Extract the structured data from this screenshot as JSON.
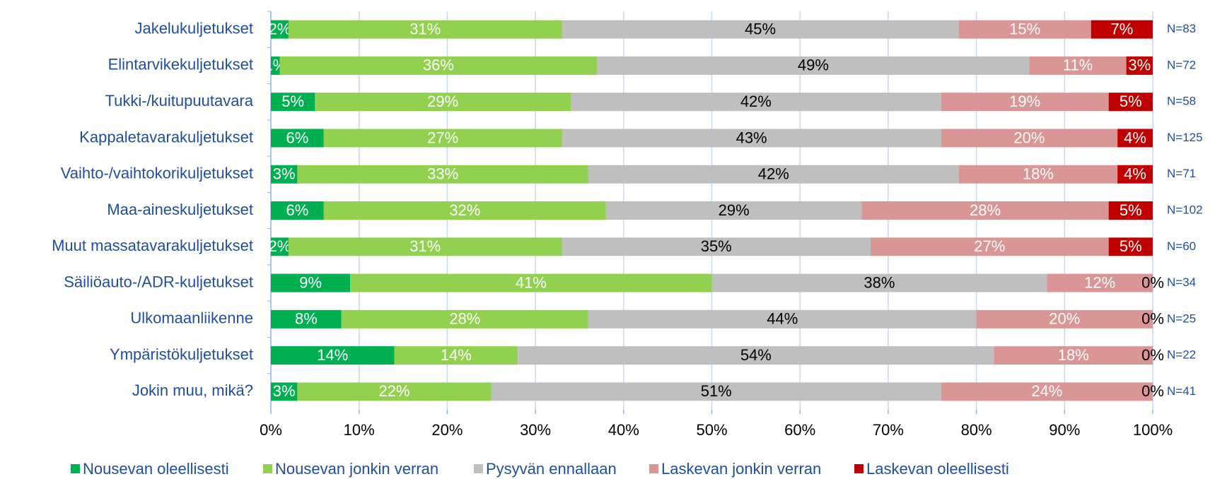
{
  "chart_data": {
    "type": "stacked_barh",
    "categories": [
      "Jakelukuljetukset",
      "Elintarvikekuljetukset",
      "Tukki-/kuitupuutavara",
      "Kappaletavarakuljetukset",
      "Vaihto-/vaihtokorikuljetukset",
      "Maa-aineskuljetukset",
      "Muut massatavarakuljetukset",
      "Säiliöauto-/ADR-kuljetukset",
      "Ulkomaanliikenne",
      "Ympäristökuljetukset",
      "Jokin muu, mikä?"
    ],
    "n_labels": [
      "N=83",
      "N=72",
      "N=58",
      "N=125",
      "N=71",
      "N=102",
      "N=60",
      "N=34",
      "N=25",
      "N=22",
      "N=41"
    ],
    "series": [
      {
        "name": "Nousevan oleellisesti",
        "color": "#00b050",
        "values": [
          2,
          1,
          5,
          6,
          3,
          6,
          2,
          9,
          8,
          14,
          3
        ],
        "value_labels": [
          "2%",
          "1%",
          "5%",
          "6%",
          "3%",
          "6%",
          "2%",
          "9%",
          "8%",
          "14%",
          "3%"
        ]
      },
      {
        "name": "Nousevan jonkin verran",
        "color": "#92d050",
        "values": [
          31,
          36,
          29,
          27,
          33,
          32,
          31,
          41,
          28,
          14,
          22
        ],
        "value_labels": [
          "31%",
          "36%",
          "29%",
          "27%",
          "33%",
          "32%",
          "31%",
          "41%",
          "28%",
          "14%",
          "22%"
        ]
      },
      {
        "name": "Pysyvän ennallaan",
        "color": "#bfbfbf",
        "values": [
          45,
          49,
          42,
          43,
          42,
          29,
          35,
          38,
          44,
          54,
          51
        ],
        "value_labels": [
          "45%",
          "49%",
          "42%",
          "43%",
          "42%",
          "29%",
          "35%",
          "38%",
          "44%",
          "54%",
          "51%"
        ]
      },
      {
        "name": "Laskevan jonkin verran",
        "color": "#da9694",
        "values": [
          15,
          11,
          19,
          20,
          18,
          28,
          27,
          12,
          20,
          18,
          24
        ],
        "value_labels": [
          "15%",
          "11%",
          "19%",
          "20%",
          "18%",
          "28%",
          "27%",
          "12%",
          "20%",
          "18%",
          "24%"
        ]
      },
      {
        "name": "Laskevan oleellisesti",
        "color": "#c00000",
        "values": [
          7,
          3,
          5,
          4,
          4,
          5,
          5,
          0,
          0,
          0,
          0
        ],
        "value_labels": [
          "7%",
          "3%",
          "5%",
          "4%",
          "4%",
          "5%",
          "5%",
          "0%",
          "0%",
          "0%",
          "0%"
        ]
      }
    ],
    "xlim": [
      0,
      100
    ],
    "xticks": [
      {
        "value": 0,
        "label": "0%"
      },
      {
        "value": 10,
        "label": "10%"
      },
      {
        "value": 20,
        "label": "20%"
      },
      {
        "value": 30,
        "label": "30%"
      },
      {
        "value": 40,
        "label": "40%"
      },
      {
        "value": 50,
        "label": "50%"
      },
      {
        "value": 60,
        "label": "60%"
      },
      {
        "value": 70,
        "label": "70%"
      },
      {
        "value": 80,
        "label": "80%"
      },
      {
        "value": 90,
        "label": "90%"
      },
      {
        "value": 100,
        "label": "100%"
      }
    ],
    "grid": true,
    "legend": "bottom"
  }
}
